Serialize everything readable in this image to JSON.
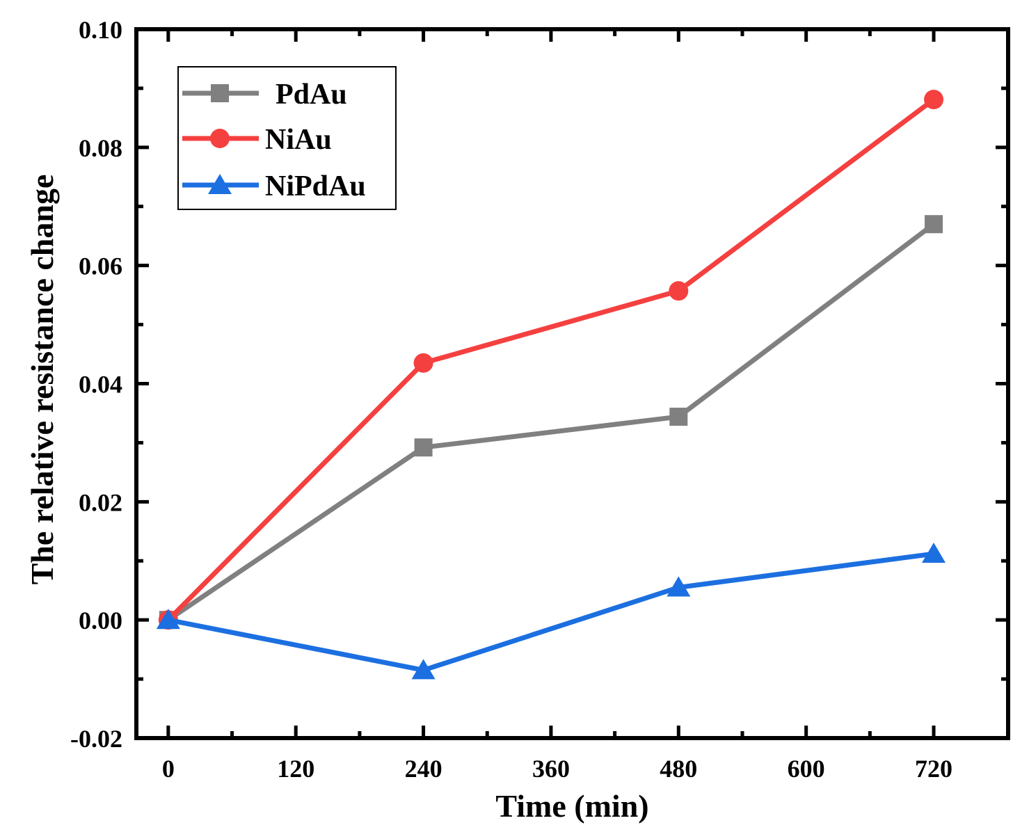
{
  "chart_data": {
    "type": "line",
    "title": "",
    "xlabel": "Time (min)",
    "ylabel": "The relative resistance change",
    "xlim": [
      -30,
      790
    ],
    "ylim": [
      -0.02,
      0.1
    ],
    "xticks": [
      0,
      120,
      240,
      360,
      480,
      600,
      720
    ],
    "xtick_labels": [
      "0",
      "120",
      "240",
      "360",
      "480",
      "600",
      "720"
    ],
    "yticks": [
      -0.02,
      0.0,
      0.02,
      0.04,
      0.06,
      0.08,
      0.1
    ],
    "ytick_labels": [
      "-0.02",
      "0.00",
      "0.02",
      "0.04",
      "0.06",
      "0.08",
      "0.10"
    ],
    "grid": false,
    "legend_position": "top-left",
    "x": [
      0,
      240,
      480,
      720
    ],
    "series": [
      {
        "name": "PdAu",
        "color": "#808080",
        "marker": "square",
        "values": [
          0.0,
          0.0292,
          0.0344,
          0.067
        ]
      },
      {
        "name": "NiAu",
        "color": "#f54040",
        "marker": "circle",
        "values": [
          0.0,
          0.0435,
          0.0557,
          0.0881
        ]
      },
      {
        "name": "NiPdAu",
        "color": "#1c6fe0",
        "marker": "triangle",
        "values": [
          0.0,
          -0.0085,
          0.0055,
          0.0112
        ]
      }
    ]
  }
}
